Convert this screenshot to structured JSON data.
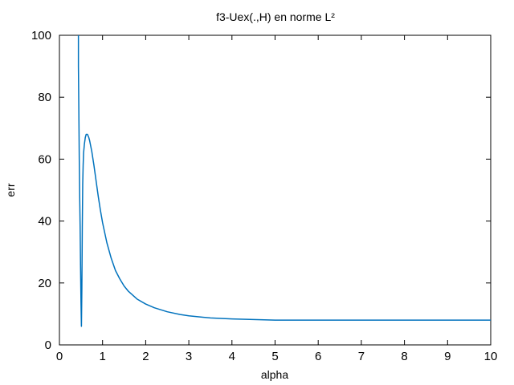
{
  "chart_data": {
    "type": "line",
    "title": "f3-Uex(.,H) en norme L²",
    "xlabel": "alpha",
    "ylabel": "err",
    "xlim": [
      0,
      10
    ],
    "ylim": [
      0,
      100
    ],
    "xticks": [
      "0",
      "1",
      "2",
      "3",
      "4",
      "5",
      "6",
      "7",
      "8",
      "9",
      "10"
    ],
    "yticks": [
      "0",
      "20",
      "40",
      "60",
      "80",
      "100"
    ],
    "grid": false,
    "legend": "none",
    "line_color": "#0072BD",
    "series": [
      {
        "x": [
          0.44,
          0.44,
          0.45,
          0.46,
          0.47,
          0.48,
          0.49,
          0.5,
          0.51,
          0.52,
          0.53,
          0.54,
          0.55,
          0.56,
          0.58,
          0.6,
          0.62,
          0.65,
          0.68,
          0.7,
          0.75,
          0.8,
          0.85,
          0.9,
          0.95,
          1.0,
          1.1,
          1.2,
          1.3,
          1.4,
          1.5,
          1.6,
          1.8,
          2.0,
          2.2,
          2.5,
          2.8,
          3.0,
          3.5,
          4.0,
          4.5,
          5.0,
          6.0,
          7.0,
          8.0,
          9.0,
          10.0
        ],
        "y": [
          100,
          90,
          76,
          60,
          48,
          38,
          25,
          14,
          6,
          18,
          38,
          52,
          58,
          62,
          65,
          67,
          68,
          68,
          67,
          66,
          62.5,
          58,
          53,
          48,
          43.5,
          39.5,
          33,
          28,
          24,
          21.3,
          19,
          17.3,
          14.8,
          13.2,
          12,
          10.7,
          9.8,
          9.4,
          8.7,
          8.4,
          8.2,
          8.0,
          8.0,
          8.0,
          8.0,
          8.0,
          8.0
        ]
      }
    ]
  }
}
